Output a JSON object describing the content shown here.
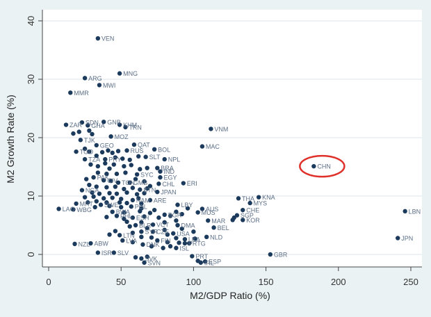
{
  "chart_data": {
    "type": "scatter",
    "title": "",
    "xlabel": "M2/GDP Ratio (%)",
    "ylabel": "M2 Growth Rate (%)",
    "xlim": [
      0,
      250
    ],
    "ylim": [
      0,
      40
    ],
    "x_ticks": [
      0,
      50,
      100,
      150,
      200,
      250
    ],
    "y_ticks": [
      0,
      10,
      20,
      30,
      40
    ],
    "grid": "horizontal",
    "colors": {
      "background": "#eaf2f3",
      "plot": "#ffffff",
      "marker": "#1b3a5c",
      "highlight": "#e0302a",
      "grid": "#dfe6ea"
    },
    "highlight": "CHN",
    "points": [
      {
        "label": "VEN",
        "x": 34,
        "y": 37
      },
      {
        "label": "MNG",
        "x": 49,
        "y": 31
      },
      {
        "label": "ARG",
        "x": 25,
        "y": 30.2
      },
      {
        "label": "MWI",
        "x": 35,
        "y": 29
      },
      {
        "label": "MMR",
        "x": 15,
        "y": 27.7
      },
      {
        "label": "SDN",
        "x": 23,
        "y": 22.6
      },
      {
        "label": "GNB",
        "x": 38,
        "y": 22.7
      },
      {
        "label": "ZAR",
        "x": 12,
        "y": 22.2
      },
      {
        "label": "GHA",
        "x": 27,
        "y": 22.1
      },
      {
        "label": "KHM",
        "x": 49,
        "y": 22.2
      },
      {
        "label": "TRN",
        "x": 53,
        "y": 21.8
      },
      {
        "label": "VNM",
        "x": 112,
        "y": 21.5
      },
      {
        "label": "MOZ",
        "x": 43,
        "y": 20.2
      },
      {
        "label": "TJK",
        "x": 22,
        "y": 19.6
      },
      {
        "label": "GEO",
        "x": 33,
        "y": 18.7
      },
      {
        "label": "QAT",
        "x": 59,
        "y": 18.8
      },
      {
        "label": "MAC",
        "x": 106,
        "y": 18.5
      },
      {
        "label": "BOL",
        "x": 73,
        "y": 18
      },
      {
        "label": "TGO",
        "x": 19,
        "y": 17.6
      },
      {
        "label": "RUS",
        "x": 54,
        "y": 17.8
      },
      {
        "label": "SLT",
        "x": 67,
        "y": 16.7
      },
      {
        "label": "NPL",
        "x": 80,
        "y": 16.3
      },
      {
        "label": "TZA",
        "x": 25,
        "y": 16.3
      },
      {
        "label": "PRY",
        "x": 39,
        "y": 16.3
      },
      {
        "label": "CHN",
        "x": 183,
        "y": 15.1
      },
      {
        "label": "BRA",
        "x": 75,
        "y": 14.8
      },
      {
        "label": "IND",
        "x": 77,
        "y": 14.2
      },
      {
        "label": "SYC",
        "x": 61,
        "y": 13.7
      },
      {
        "label": "EGY",
        "x": 77,
        "y": 13.2
      },
      {
        "label": "PAK",
        "x": 31,
        "y": 13.2
      },
      {
        "label": "CIV",
        "x": 38,
        "y": 12.7
      },
      {
        "label": "TON",
        "x": 48,
        "y": 12.3
      },
      {
        "label": "GMB",
        "x": 56,
        "y": 12.3
      },
      {
        "label": "CHL",
        "x": 76,
        "y": 12.1
      },
      {
        "label": "ERI",
        "x": 93,
        "y": 12.2
      },
      {
        "label": "BTN",
        "x": 63,
        "y": 11.1
      },
      {
        "label": "NGA",
        "x": 23,
        "y": 11
      },
      {
        "label": "JPAN",
        "x": 75,
        "y": 10.7
      },
      {
        "label": "THA",
        "x": 131,
        "y": 9.6
      },
      {
        "label": "KNA",
        "x": 145,
        "y": 9.8
      },
      {
        "label": "MYS",
        "x": 139,
        "y": 8.8
      },
      {
        "label": "NAM",
        "x": 58,
        "y": 9.3
      },
      {
        "label": "ARE",
        "x": 70,
        "y": 9.3
      },
      {
        "label": "MRT",
        "x": 19,
        "y": 8.7
      },
      {
        "label": "LBY",
        "x": 89,
        "y": 8.5
      },
      {
        "label": "SWE",
        "x": 36,
        "y": 8.5
      },
      {
        "label": "POL",
        "x": 57,
        "y": 8.2
      },
      {
        "label": "LAO",
        "x": 7,
        "y": 7.8
      },
      {
        "label": "WBG",
        "x": 17,
        "y": 7.7
      },
      {
        "label": "AUS",
        "x": 106,
        "y": 7.8
      },
      {
        "label": "CHE",
        "x": 134,
        "y": 7.6
      },
      {
        "label": "BWA",
        "x": 44,
        "y": 7.3
      },
      {
        "label": "MUS",
        "x": 103,
        "y": 7.2
      },
      {
        "label": "SGP",
        "x": 130,
        "y": 6.7
      },
      {
        "label": "BGR",
        "x": 80,
        "y": 6.8
      },
      {
        "label": "PHL",
        "x": 47,
        "y": 6.6
      },
      {
        "label": "ESH",
        "x": 58,
        "y": 6.3
      },
      {
        "label": "MAR",
        "x": 110,
        "y": 5.8
      },
      {
        "label": "KOR",
        "x": 134,
        "y": 5.9
      },
      {
        "label": "VCT",
        "x": 72,
        "y": 5.1
      },
      {
        "label": "DMA",
        "x": 89,
        "y": 5
      },
      {
        "label": "BLR",
        "x": 60,
        "y": 5
      },
      {
        "label": "BEL",
        "x": 114,
        "y": 4.6
      },
      {
        "label": "SYR",
        "x": 64,
        "y": 3.9
      },
      {
        "label": "CZE",
        "x": 72,
        "y": 3.9
      },
      {
        "label": "USA",
        "x": 86,
        "y": 3.6
      },
      {
        "label": "LTN",
        "x": 49,
        "y": 3.3
      },
      {
        "label": "NLD",
        "x": 109,
        "y": 3
      },
      {
        "label": "LKA",
        "x": 94,
        "y": 2.6
      },
      {
        "label": "LVA",
        "x": 51,
        "y": 2.4
      },
      {
        "label": "FIN",
        "x": 75,
        "y": 2.4
      },
      {
        "label": "PRTG",
        "x": 94,
        "y": 1.9
      },
      {
        "label": "NZL",
        "x": 18,
        "y": 1.8
      },
      {
        "label": "ABW",
        "x": 29,
        "y": 1.9
      },
      {
        "label": "DNK",
        "x": 65,
        "y": 1.7
      },
      {
        "label": "ISL",
        "x": 88,
        "y": 1.1
      },
      {
        "label": "ISR",
        "x": 34,
        "y": 0.3
      },
      {
        "label": "SLV",
        "x": 45,
        "y": 0.3
      },
      {
        "label": "GBR",
        "x": 153,
        "y": 0
      },
      {
        "label": "PRT",
        "x": 99,
        "y": -0.3
      },
      {
        "label": "SVK",
        "x": 64,
        "y": -0.7
      },
      {
        "label": "ESP",
        "x": 108,
        "y": -1.2
      },
      {
        "label": "SVN",
        "x": 66,
        "y": -1.4
      },
      {
        "label": "IRL",
        "x": 105,
        "y": -1.4
      },
      {
        "label": "LBN",
        "x": 246,
        "y": 7.4
      },
      {
        "label": "JPN",
        "x": 241,
        "y": 2.8
      }
    ],
    "unlabeled_points": [
      {
        "x": 17,
        "y": 20.7
      },
      {
        "x": 21,
        "y": 21
      },
      {
        "x": 28,
        "y": 21.2
      },
      {
        "x": 30,
        "y": 20.6
      },
      {
        "x": 25,
        "y": 18.1
      },
      {
        "x": 28,
        "y": 17.6
      },
      {
        "x": 37,
        "y": 17.5
      },
      {
        "x": 41,
        "y": 17.8
      },
      {
        "x": 44,
        "y": 17.4
      },
      {
        "x": 48,
        "y": 17.7
      },
      {
        "x": 33,
        "y": 16.9
      },
      {
        "x": 46,
        "y": 16.6
      },
      {
        "x": 51,
        "y": 16.4
      },
      {
        "x": 56,
        "y": 16.2
      },
      {
        "x": 62,
        "y": 16.8
      },
      {
        "x": 29,
        "y": 15.4
      },
      {
        "x": 34,
        "y": 15.1
      },
      {
        "x": 39,
        "y": 15.6
      },
      {
        "x": 42,
        "y": 14.7
      },
      {
        "x": 45,
        "y": 15.4
      },
      {
        "x": 52,
        "y": 15.1
      },
      {
        "x": 57,
        "y": 15.3
      },
      {
        "x": 63,
        "y": 14.6
      },
      {
        "x": 68,
        "y": 14.8
      },
      {
        "x": 34,
        "y": 14
      },
      {
        "x": 40,
        "y": 13.8
      },
      {
        "x": 47,
        "y": 13.8
      },
      {
        "x": 53,
        "y": 14
      },
      {
        "x": 26,
        "y": 12.9
      },
      {
        "x": 43,
        "y": 12.6
      },
      {
        "x": 60,
        "y": 12.9
      },
      {
        "x": 66,
        "y": 12.5
      },
      {
        "x": 70,
        "y": 11.7
      },
      {
        "x": 28,
        "y": 11.9
      },
      {
        "x": 33,
        "y": 11.6
      },
      {
        "x": 40,
        "y": 11.5
      },
      {
        "x": 46,
        "y": 11.6
      },
      {
        "x": 52,
        "y": 11.2
      },
      {
        "x": 58,
        "y": 11.4
      },
      {
        "x": 68,
        "y": 11.3
      },
      {
        "x": 30,
        "y": 10.6
      },
      {
        "x": 35,
        "y": 10.4
      },
      {
        "x": 42,
        "y": 10.5
      },
      {
        "x": 47,
        "y": 10.4
      },
      {
        "x": 54,
        "y": 10.6
      },
      {
        "x": 61,
        "y": 10.3
      },
      {
        "x": 66,
        "y": 10.5
      },
      {
        "x": 25,
        "y": 9.8
      },
      {
        "x": 31,
        "y": 9.9
      },
      {
        "x": 38,
        "y": 9.6
      },
      {
        "x": 44,
        "y": 9.7
      },
      {
        "x": 50,
        "y": 9.5
      },
      {
        "x": 62,
        "y": 9.6
      },
      {
        "x": 27,
        "y": 8.9
      },
      {
        "x": 33,
        "y": 9.1
      },
      {
        "x": 40,
        "y": 8.9
      },
      {
        "x": 49,
        "y": 8.9
      },
      {
        "x": 54,
        "y": 8.8
      },
      {
        "x": 64,
        "y": 8.7
      },
      {
        "x": 32,
        "y": 8.1
      },
      {
        "x": 42,
        "y": 8.3
      },
      {
        "x": 50,
        "y": 8.1
      },
      {
        "x": 64,
        "y": 7.9
      },
      {
        "x": 73,
        "y": 7.6
      },
      {
        "x": 96,
        "y": 7.9
      },
      {
        "x": 52,
        "y": 7.2
      },
      {
        "x": 63,
        "y": 7.4
      },
      {
        "x": 70,
        "y": 7.1
      },
      {
        "x": 88,
        "y": 7.3
      },
      {
        "x": 92,
        "y": 6.9
      },
      {
        "x": 40,
        "y": 6.4
      },
      {
        "x": 52,
        "y": 6.1
      },
      {
        "x": 66,
        "y": 6.5
      },
      {
        "x": 76,
        "y": 6.3
      },
      {
        "x": 84,
        "y": 6.6
      },
      {
        "x": 128,
        "y": 6.3
      },
      {
        "x": 54,
        "y": 5.6
      },
      {
        "x": 64,
        "y": 5.5
      },
      {
        "x": 80,
        "y": 5.5
      },
      {
        "x": 88,
        "y": 5.8
      },
      {
        "x": 127,
        "y": 5.9
      },
      {
        "x": 56,
        "y": 4.8
      },
      {
        "x": 68,
        "y": 4.5
      },
      {
        "x": 80,
        "y": 4.2
      },
      {
        "x": 92,
        "y": 4.4
      },
      {
        "x": 46,
        "y": 4
      },
      {
        "x": 58,
        "y": 3.7
      },
      {
        "x": 82,
        "y": 3.4
      },
      {
        "x": 100,
        "y": 3.9
      },
      {
        "x": 42,
        "y": 3.4
      },
      {
        "x": 64,
        "y": 3
      },
      {
        "x": 71,
        "y": 2.9
      },
      {
        "x": 88,
        "y": 2.8
      },
      {
        "x": 101,
        "y": 2.7
      },
      {
        "x": 58,
        "y": 2.1
      },
      {
        "x": 82,
        "y": 2.1
      },
      {
        "x": 90,
        "y": 2
      },
      {
        "x": 97,
        "y": 1.9
      },
      {
        "x": 71,
        "y": 1.4
      },
      {
        "x": 79,
        "y": 1.1
      },
      {
        "x": 84,
        "y": 1.4
      },
      {
        "x": 60,
        "y": -0.5
      },
      {
        "x": 68,
        "y": -0.4
      },
      {
        "x": 103,
        "y": -1.1
      }
    ]
  }
}
